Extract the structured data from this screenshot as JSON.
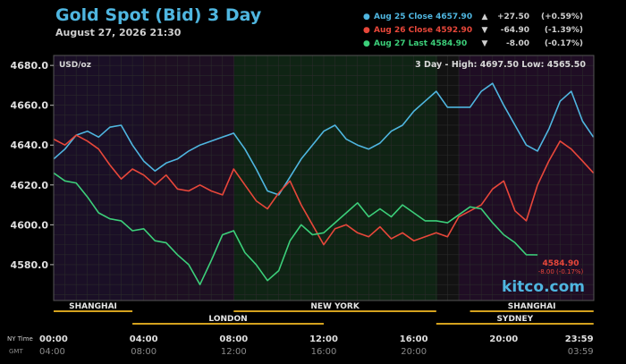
{
  "header": {
    "title": "Gold Spot (Bid) 3 Day",
    "datetime": "August 27, 2026 21:30"
  },
  "legend": [
    {
      "label": "Aug 25 Close",
      "value": "4657.90",
      "arrow": "▲",
      "change": "+27.50",
      "percent": "(+0.59%)",
      "color": "#4fb6e0"
    },
    {
      "label": "Aug 26 Close",
      "value": "4592.90",
      "arrow": "▼",
      "change": "-64.90",
      "percent": "(-1.39%)",
      "color": "#e8473a"
    },
    {
      "label": "Aug 27 Last",
      "value": "4584.90",
      "arrow": "▼",
      "change": "-8.00",
      "percent": "(-0.17%)",
      "color": "#3ccf7a"
    }
  ],
  "plot_header": {
    "unit": "USD/oz",
    "range_text": "3 Day - High: 4697.50  Low: 4565.50"
  },
  "last_marker": {
    "price": "4584.90",
    "change": "-8.00 (-0.17%)"
  },
  "watermark": "kitco.com",
  "sessions": {
    "top": [
      {
        "name": "SHANGHAI",
        "start": 0,
        "end": 3.5
      },
      {
        "name": "NEW YORK",
        "start": 8,
        "end": 17
      },
      {
        "name": "SHANGHAI",
        "start": 18.5,
        "end": 23.99
      }
    ],
    "bottom": [
      {
        "name": "LONDON",
        "start": 3.5,
        "end": 12
      },
      {
        "name": "SYDNEY",
        "start": 17,
        "end": 23.99
      }
    ]
  },
  "axis_rows": {
    "ny_label": "NY Time",
    "gmt_label": "GMT"
  },
  "chart_data": {
    "type": "line",
    "ylabel": "USD/oz",
    "ylim": [
      4562,
      4685
    ],
    "xlim": [
      0,
      24
    ],
    "yticks": [
      4580,
      4600,
      4620,
      4640,
      4660,
      4680
    ],
    "ytick_labels": [
      "4580.0",
      "4600.0",
      "4620.0",
      "4640.0",
      "4660.0",
      "4680.0"
    ],
    "xticks_hours": [
      0,
      4,
      8,
      12,
      16,
      20,
      23.983
    ],
    "xtick_labels_ny": [
      "00:00",
      "04:00",
      "08:00",
      "12:00",
      "16:00",
      "20:00",
      "23:59"
    ],
    "xtick_labels_gmt": [
      "04:00",
      "08:00",
      "12:00",
      "16:00",
      "20:00",
      "",
      "03:59"
    ],
    "grid": true,
    "series": [
      {
        "name": "Aug 25",
        "color": "#4fb6e0",
        "x": [
          0,
          0.5,
          1,
          1.5,
          2,
          2.5,
          3,
          3.5,
          4,
          4.5,
          5,
          5.5,
          6,
          6.5,
          7,
          7.5,
          8,
          8.5,
          9,
          9.5,
          10,
          10.5,
          11,
          11.5,
          12,
          12.5,
          13,
          13.5,
          14,
          14.5,
          15,
          15.5,
          16,
          16.5,
          17,
          17.5,
          18,
          18.5,
          19,
          19.5,
          20,
          20.5,
          21,
          21.5,
          22,
          22.5,
          23,
          23.5,
          23.983
        ],
        "y": [
          4633,
          4638,
          4645,
          4647,
          4644,
          4649,
          4650,
          4640,
          4632,
          4627,
          4631,
          4633,
          4637,
          4640,
          4642,
          4644,
          4646,
          4638,
          4628,
          4617,
          4615,
          4624,
          4633,
          4640,
          4647,
          4650,
          4643,
          4640,
          4638,
          4641,
          4647,
          4650,
          4657,
          4662,
          4667,
          4659,
          4659,
          4659,
          4667,
          4671,
          4660,
          4650,
          4640,
          4637,
          4648,
          4662,
          4667,
          4652,
          4644
        ]
      },
      {
        "name": "Aug 26",
        "color": "#e8473a",
        "x": [
          0,
          0.5,
          1,
          1.5,
          2,
          2.5,
          3,
          3.5,
          4,
          4.5,
          5,
          5.5,
          6,
          6.5,
          7,
          7.5,
          8,
          8.5,
          9,
          9.5,
          10,
          10.5,
          11,
          11.5,
          12,
          12.5,
          13,
          13.5,
          14,
          14.5,
          15,
          15.5,
          16,
          16.5,
          17,
          17.5,
          18,
          18.5,
          19,
          19.5,
          20,
          20.5,
          21,
          21.5,
          22,
          22.5,
          23,
          23.5,
          23.983
        ],
        "y": [
          4643,
          4640,
          4645,
          4642,
          4638,
          4630,
          4623,
          4628,
          4625,
          4620,
          4625,
          4618,
          4617,
          4620,
          4617,
          4615,
          4628,
          4620,
          4612,
          4608,
          4616,
          4622,
          4610,
          4600,
          4590,
          4598,
          4600,
          4596,
          4594,
          4599,
          4593,
          4596,
          4592,
          4594,
          4596,
          4594,
          4604,
          4607,
          4610,
          4618,
          4622,
          4607,
          4602,
          4620,
          4632,
          4642,
          4638,
          4632,
          4626
        ]
      },
      {
        "name": "Aug 27",
        "color": "#3ccf7a",
        "x": [
          0,
          0.5,
          1,
          1.5,
          2,
          2.5,
          3,
          3.5,
          4,
          4.5,
          5,
          5.5,
          6,
          6.5,
          7,
          7.5,
          8,
          8.5,
          9,
          9.5,
          10,
          10.5,
          11,
          11.5,
          12,
          12.5,
          13,
          13.5,
          14,
          14.5,
          15,
          15.5,
          16,
          16.5,
          17,
          17.5,
          18,
          18.5,
          19,
          19.5,
          20,
          20.5,
          21,
          21.5
        ],
        "y": [
          4626,
          4622,
          4621,
          4614,
          4606,
          4603,
          4602,
          4597,
          4598,
          4592,
          4591,
          4585,
          4580,
          4570,
          4582,
          4595,
          4597,
          4586,
          4580,
          4572,
          4577,
          4592,
          4600,
          4595,
          4596,
          4601,
          4606,
          4611,
          4604,
          4608,
          4604,
          4610,
          4606,
          4602,
          4602,
          4601,
          4605,
          4609,
          4608,
          4601,
          4595,
          4591,
          4585,
          4584.9
        ]
      }
    ]
  }
}
